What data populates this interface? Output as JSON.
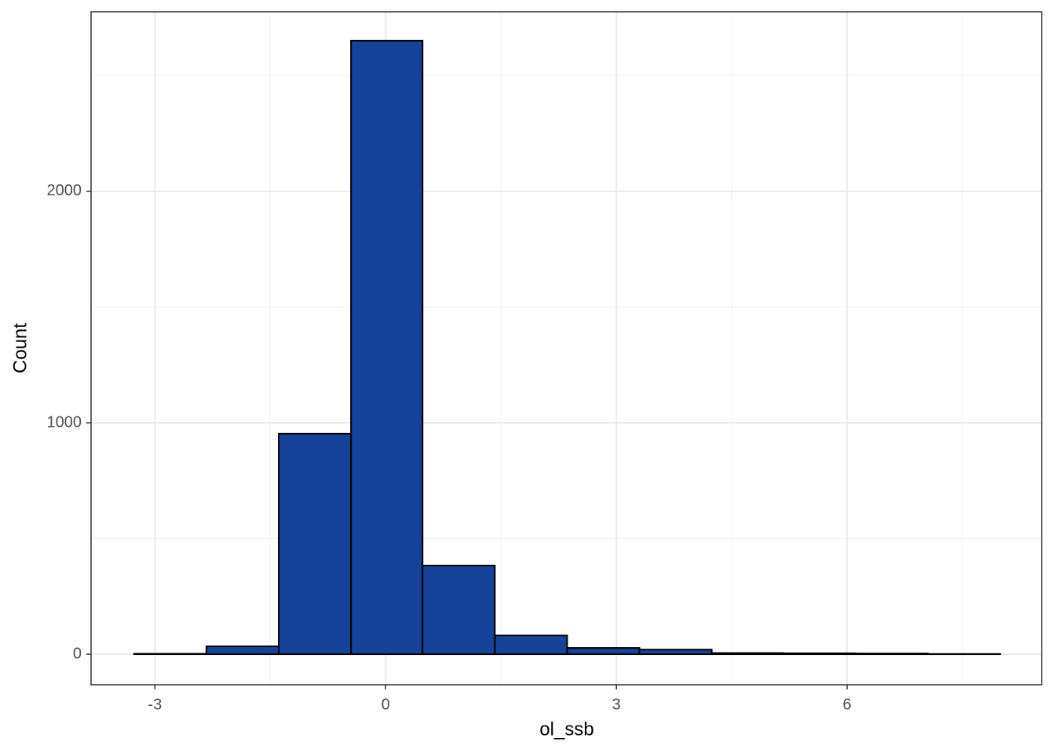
{
  "chart_data": {
    "type": "histogram",
    "x_label": "ol_ssb",
    "y_label": "Count",
    "bins": [
      -3.27,
      -2.33,
      -1.39,
      -0.45,
      0.48,
      1.42,
      2.36,
      3.3,
      4.24,
      5.17,
      6.11,
      7.05,
      7.99
    ],
    "values": [
      2,
      34,
      953,
      2651,
      383,
      81,
      27,
      20,
      5,
      4,
      3,
      1
    ],
    "color": "#17429a",
    "edge_color": "#000000",
    "xlim": [
      -3.83,
      8.53
    ],
    "xticks": [
      -3,
      0,
      3,
      6
    ],
    "x_minor_ticks": [
      -1.5,
      1.5,
      4.5,
      7.5
    ],
    "ylim": [
      -132,
      2776
    ],
    "yticks": [
      0,
      1000,
      2000
    ],
    "y_minor_ticks": [
      500,
      1500,
      2500
    ],
    "grid": true
  }
}
